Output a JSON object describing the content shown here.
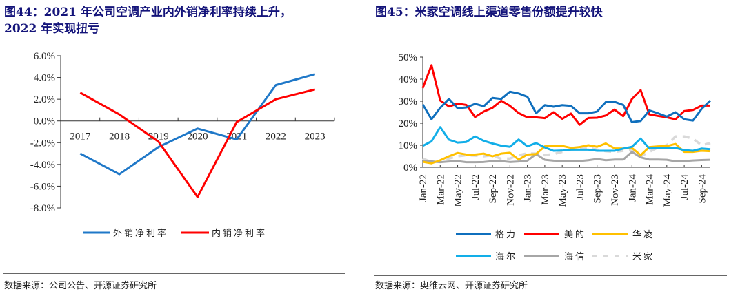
{
  "left": {
    "title_line1": "图44：2021  年公司空调产业内外销净利率持续上升，",
    "title_line2": "2022 年实现扭亏",
    "source": "数据来源：公司公告、开源证券研究所"
  },
  "right": {
    "title": "图45：米家空调线上渠道零售份额提升较快",
    "source": "数据来源：奥维云网、开源证券研究所"
  },
  "chart_data": [
    {
      "type": "line",
      "categories": [
        "2017",
        "2018",
        "2019",
        "2020",
        "2021",
        "2022",
        "2023"
      ],
      "ylim": [
        -8,
        6
      ],
      "yticks": [
        "6.0%",
        "4.0%",
        "2.0%",
        "0.0%",
        "-2.0%",
        "-4.0%",
        "-6.0%",
        "-8.0%"
      ],
      "ytick_values": [
        6,
        4,
        2,
        0,
        -2,
        -4,
        -6,
        -8
      ],
      "legend_position": "bottom",
      "series": [
        {
          "name": "外销净利率",
          "color": "#1f78c8",
          "values": [
            -3.0,
            -4.9,
            -2.4,
            -0.7,
            -1.7,
            3.3,
            4.3
          ]
        },
        {
          "name": "内销净利率",
          "color": "#ff0000",
          "values": [
            2.6,
            0.6,
            -1.9,
            -7.0,
            -0.1,
            2.0,
            2.9
          ]
        }
      ]
    },
    {
      "type": "line",
      "x": [
        "Jan-22",
        "Feb-22",
        "Mar-22",
        "Apr-22",
        "May-22",
        "Jun-22",
        "Jul-22",
        "Aug-22",
        "Sep-22",
        "Oct-22",
        "Nov-22",
        "Dec-22",
        "Jan-23",
        "Feb-23",
        "Mar-23",
        "Apr-23",
        "May-23",
        "Jun-23",
        "Jul-23",
        "Aug-23",
        "Sep-23",
        "Oct-23",
        "Nov-23",
        "Dec-23",
        "Jan-24",
        "Feb-24",
        "Mar-24",
        "Apr-24",
        "May-24",
        "Jun-24",
        "Jul-24",
        "Aug-24",
        "Sep-24",
        "Oct-24"
      ],
      "xtick_labels": [
        "Jan-22",
        "Mar-22",
        "May-22",
        "Jul-22",
        "Sep-22",
        "Nov-22",
        "Jan-23",
        "Mar-23",
        "May-23",
        "Jul-23",
        "Sep-23",
        "Nov-23",
        "Jan-24",
        "Mar-24",
        "May-24",
        "Jul-24",
        "Sep-24"
      ],
      "ylim": [
        0,
        50
      ],
      "yticks": [
        "50%",
        "40%",
        "30%",
        "20%",
        "10%",
        "0%"
      ],
      "ytick_values": [
        50,
        40,
        30,
        20,
        10,
        0
      ],
      "legend_position": "bottom",
      "series": [
        {
          "name": "格力",
          "color": "#0f6fbd",
          "dash": false,
          "values": [
            28.5,
            21.8,
            27,
            31,
            26.8,
            27.2,
            28.8,
            27.7,
            31.5,
            31,
            34.3,
            33.5,
            32,
            24.5,
            28.2,
            27.5,
            28.2,
            27.9,
            24.5,
            24.5,
            25.3,
            29.6,
            29.7,
            28.3,
            20.5,
            21,
            25.8,
            24.5,
            23,
            25,
            21.8,
            21.2,
            26.5,
            30.3
          ]
        },
        {
          "name": "美的",
          "color": "#ff0000",
          "dash": false,
          "values": [
            36,
            46.3,
            30.3,
            27.6,
            28.9,
            28.3,
            22.8,
            25.3,
            27,
            30.2,
            27.9,
            24.6,
            22.7,
            22.7,
            22.3,
            25,
            22,
            24.4,
            19.3,
            22.4,
            22.5,
            23.5,
            26.2,
            23.2,
            31,
            35,
            24,
            23.3,
            22.7,
            21.8,
            25.5,
            26,
            28,
            28
          ]
        },
        {
          "name": "华凌",
          "color": "#ffc000",
          "dash": false,
          "values": [
            2.5,
            1.8,
            3.2,
            5,
            6.5,
            5.8,
            5.8,
            6.2,
            5,
            6.2,
            6.6,
            3.5,
            5.8,
            6,
            9.5,
            9.8,
            9.7,
            8.8,
            9.2,
            10,
            9.3,
            10.8,
            8.6,
            8.5,
            8.8,
            5.5,
            9.2,
            9.5,
            9.6,
            10.6,
            7,
            7,
            7.5,
            7.3
          ]
        },
        {
          "name": "海尔",
          "color": "#12aee8",
          "dash": false,
          "values": [
            9.7,
            11.8,
            18.2,
            12.5,
            11.2,
            11.5,
            14,
            12,
            10.8,
            9.8,
            9.3,
            12.6,
            9.5,
            11,
            9,
            7.5,
            7.6,
            8,
            8,
            8,
            7.5,
            7.5,
            7.5,
            8.5,
            9.3,
            13,
            8.5,
            8.8,
            8.8,
            8.8,
            7.8,
            7.5,
            8.5,
            8.2
          ]
        },
        {
          "name": "海信",
          "color": "#a6a6a6",
          "dash": false,
          "values": [
            3,
            2.7,
            2.3,
            2.6,
            2.8,
            2.3,
            2.3,
            2.4,
            2.8,
            2.8,
            2.4,
            2.6,
            3,
            6,
            3.4,
            3,
            2.9,
            2.8,
            2.8,
            3.2,
            3.8,
            3.2,
            3.5,
            3.5,
            7,
            4.5,
            3.5,
            3.5,
            3.4,
            2.7,
            2.8,
            3.1,
            3.3,
            3.4
          ]
        },
        {
          "name": "米家",
          "color": "#d9d9d9",
          "dash": true,
          "values": [
            4,
            2.3,
            2.5,
            4,
            5,
            5.5,
            5.3,
            5,
            5.5,
            3.8,
            4,
            5.5,
            6.3,
            6.2,
            5.5,
            6,
            7,
            8,
            8.5,
            9,
            8,
            7.3,
            7,
            7.5,
            8,
            5,
            7,
            9,
            10,
            14,
            14,
            13,
            10,
            11
          ]
        }
      ]
    }
  ]
}
